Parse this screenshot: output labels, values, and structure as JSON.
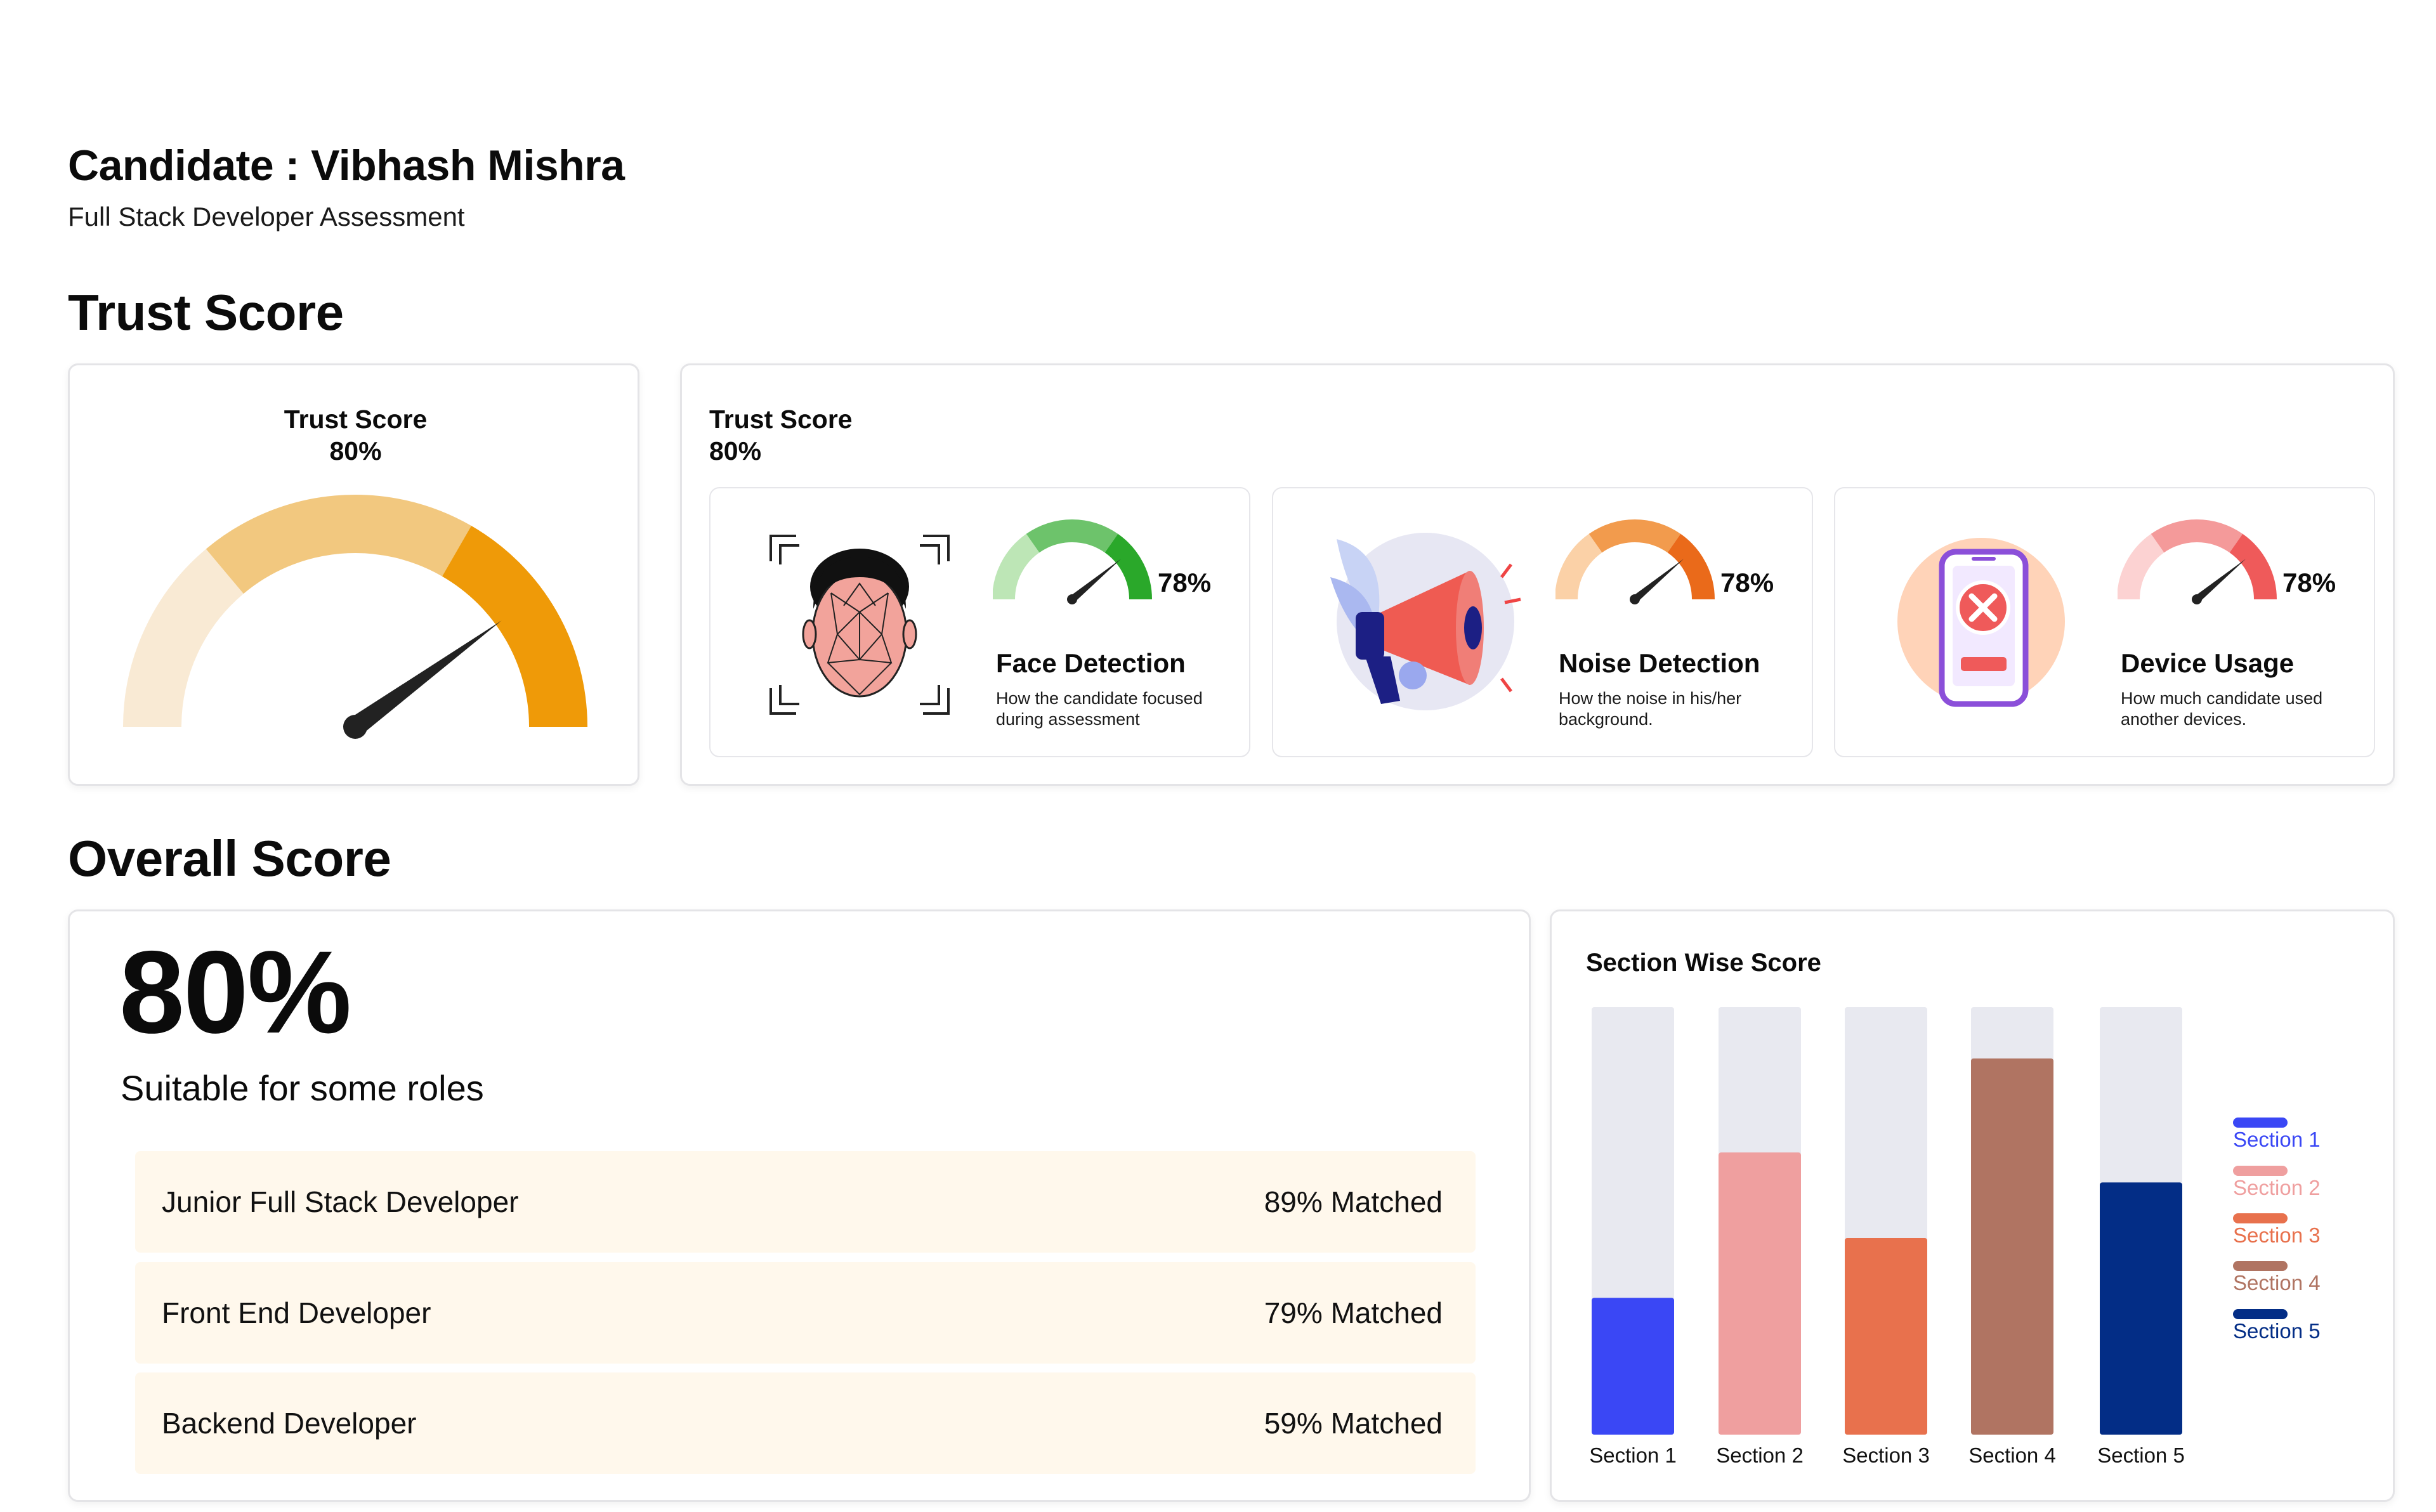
{
  "header": {
    "title": "Candidate : Vibhash Mishra",
    "subtitle": "Full Stack Developer Assessment"
  },
  "trust_section": {
    "heading": "Trust Score",
    "gauge_card": {
      "label": "Trust Score",
      "value": "80%",
      "value_fraction": 0.8
    },
    "detail_card": {
      "label": "Trust Score",
      "value": "80%",
      "items": [
        {
          "title": "Face Detection",
          "desc": "How the candidate focused during assessment",
          "value": "78%",
          "value_fraction": 0.78,
          "icon": "face-scan-icon",
          "color": "#2aa82a",
          "bg": "#eef4fc"
        },
        {
          "title": "Noise Detection",
          "desc": "How the noise in his/her background.",
          "value": "78%",
          "value_fraction": 0.78,
          "icon": "megaphone-icon",
          "color": "#ea6a1a",
          "bg": "#fffaef"
        },
        {
          "title": "Device Usage",
          "desc": "How much candidate used another devices.",
          "value": "78%",
          "value_fraction": 0.78,
          "icon": "phone-blocked-icon",
          "color": "#ef5a5a",
          "bg": "#fdecec"
        }
      ]
    }
  },
  "overall_section": {
    "heading": "Overall Score",
    "score": "80%",
    "verdict": "Suitable for some roles",
    "roles": [
      {
        "name": "Junior Full Stack Developer",
        "match": "89% Matched"
      },
      {
        "name": "Front End Developer",
        "match": "79% Matched"
      },
      {
        "name": "Backend Developer",
        "match": "59% Matched"
      }
    ]
  },
  "chart_data": {
    "type": "bar",
    "title": "Section Wise Score",
    "categories": [
      "Section 1",
      "Section 2",
      "Section 3",
      "Section 4",
      "Section 5"
    ],
    "values": [
      32,
      66,
      46,
      88,
      59
    ],
    "ylim": [
      0,
      100
    ],
    "colors": [
      "#3a47f5",
      "#ef9f9f",
      "#e8714d",
      "#b07462",
      "#032d86"
    ],
    "track_color": "#e8e9f0",
    "legend": [
      "Section 1",
      "Section 2",
      "Section 3",
      "Section 4",
      "Section 5"
    ],
    "legend_position": "right",
    "grid": false
  }
}
